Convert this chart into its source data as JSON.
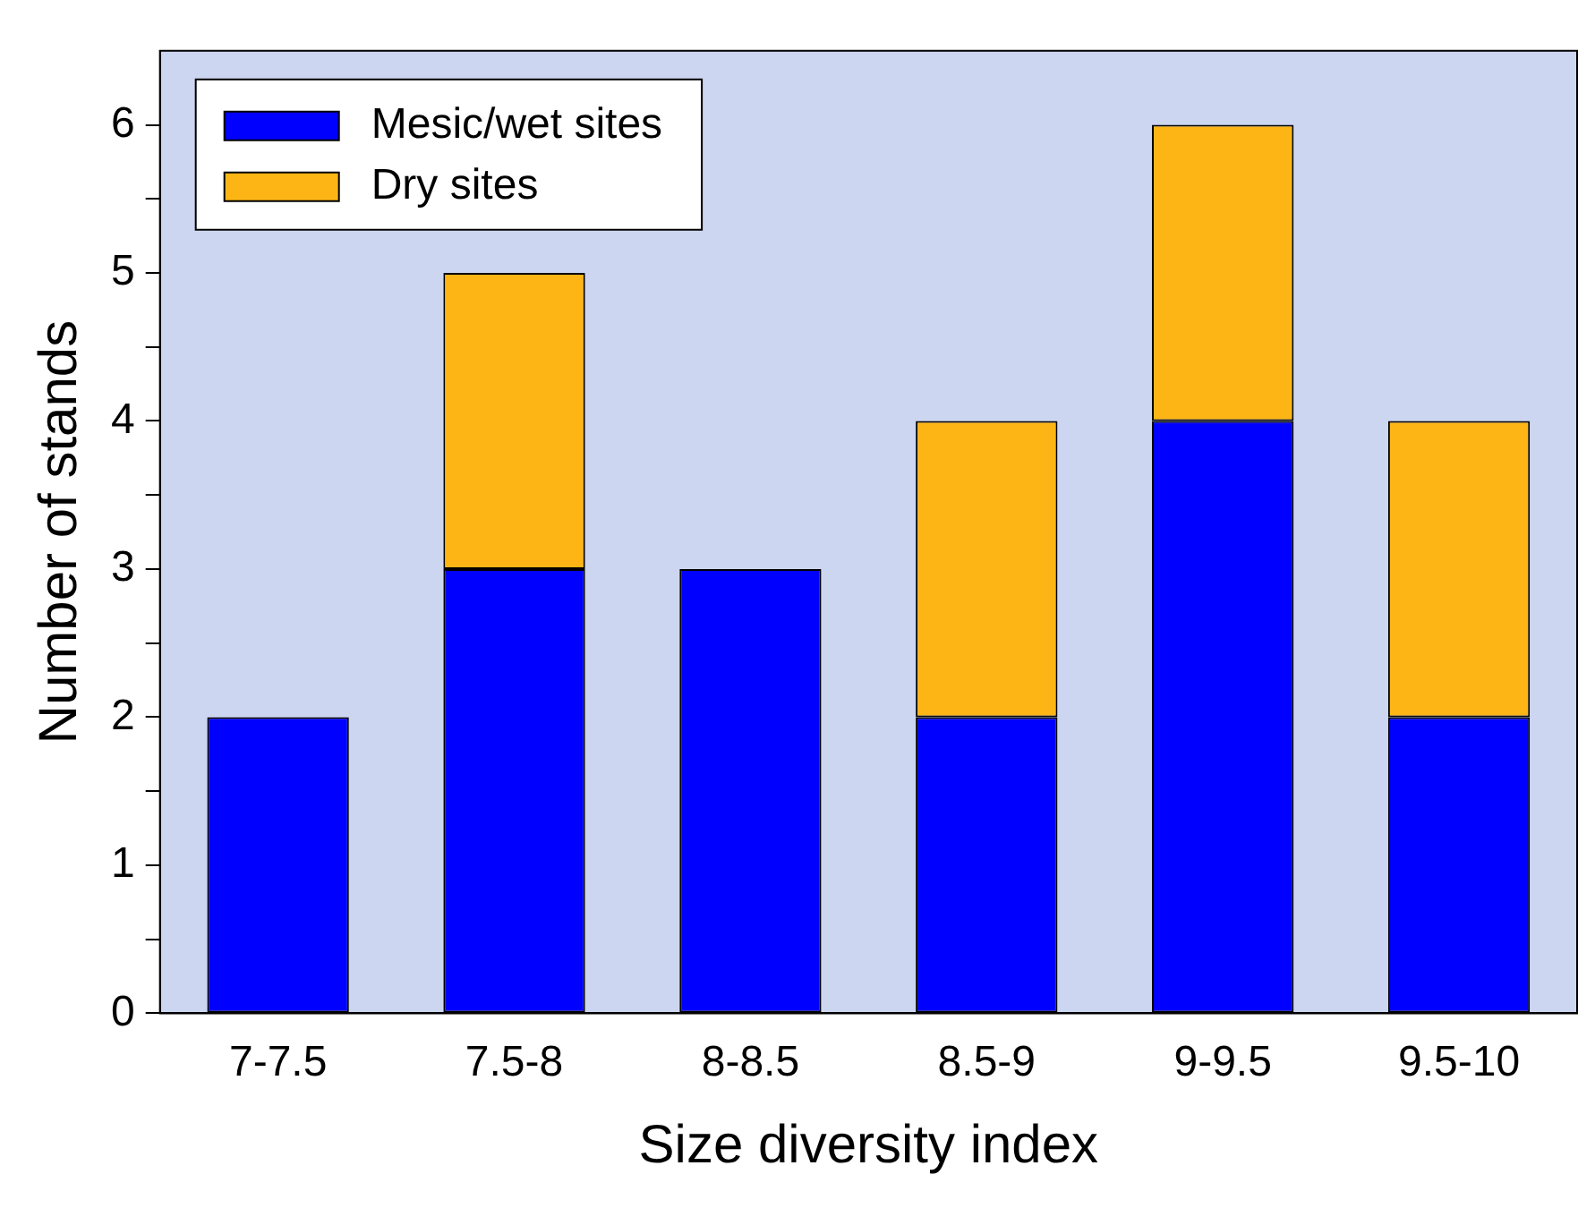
{
  "chart_data": {
    "type": "bar",
    "xlabel": "Size diversity index",
    "ylabel": "Number of stands",
    "categories": [
      "7-7.5",
      "7.5-8",
      "8-8.5",
      "8.5-9",
      "9-9.5",
      "9.5-10"
    ],
    "stacked": true,
    "series": [
      {
        "name": "Mesic/wet sites",
        "color": "#0000ff",
        "values": [
          2,
          3,
          3,
          2,
          4,
          2
        ]
      },
      {
        "name": "Dry sites",
        "color": "#fdb515",
        "values": [
          null,
          2,
          null,
          2,
          2,
          2
        ]
      }
    ],
    "ylim": [
      0,
      6.5
    ],
    "yticks": [
      0,
      {
        "value": 0.5,
        "label": null
      },
      1,
      {
        "value": 1.5,
        "label": null
      },
      2,
      {
        "value": 2.5,
        "label": null
      },
      3,
      {
        "value": 3.5,
        "label": null
      },
      4,
      {
        "value": 4.5,
        "label": null
      },
      5,
      {
        "value": 5.5,
        "label": null
      },
      6
    ],
    "grid": false,
    "legend": "top left"
  }
}
